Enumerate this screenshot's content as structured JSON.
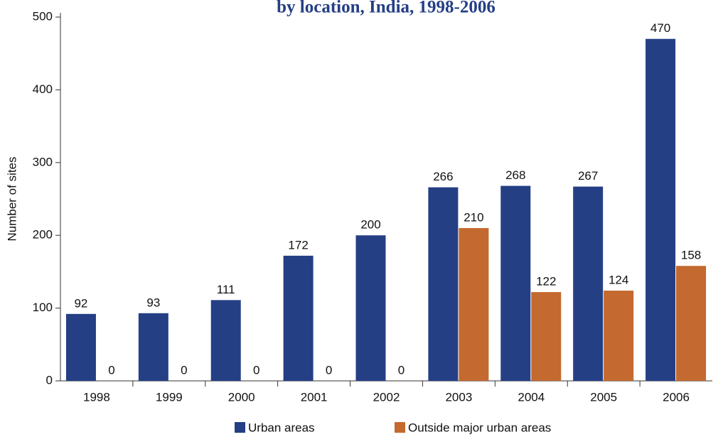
{
  "chart_data": {
    "type": "bar",
    "title": "by location, India, 1998-2006",
    "ylabel": "Number of sites",
    "categories": [
      "1998",
      "1999",
      "2000",
      "2001",
      "2002",
      "2003",
      "2004",
      "2005",
      "2006"
    ],
    "series": [
      {
        "name": "Urban areas",
        "color": "#253f85",
        "values": [
          92,
          93,
          111,
          172,
          200,
          266,
          268,
          267,
          470
        ]
      },
      {
        "name": "Outside major urban areas",
        "color": "#c4692f",
        "values": [
          0,
          0,
          0,
          0,
          0,
          210,
          122,
          124,
          158
        ]
      }
    ],
    "ylim": [
      0,
      500
    ],
    "yticks": [
      0,
      100,
      200,
      300,
      400,
      500
    ],
    "grid": false,
    "legend": "bottom"
  }
}
